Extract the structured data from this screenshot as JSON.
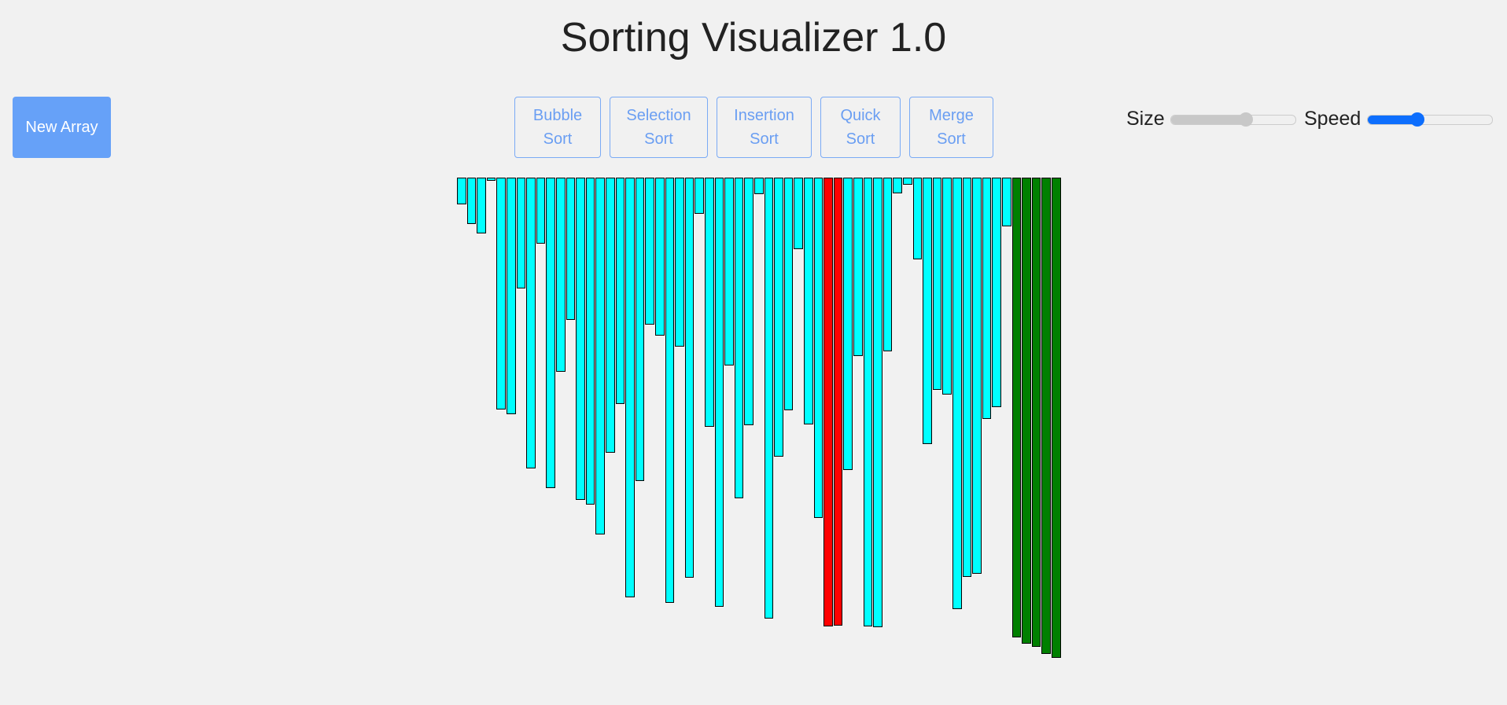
{
  "header": {
    "title": "Sorting Visualizer 1.0"
  },
  "controls": {
    "new_array_label": "New Array",
    "algorithms": [
      {
        "line1": "Bubble",
        "line2": "Sort"
      },
      {
        "line1": "Selection",
        "line2": "Sort"
      },
      {
        "line1": "Insertion",
        "line2": "Sort"
      },
      {
        "line1": "Quick",
        "line2": "Sort"
      },
      {
        "line1": "Merge",
        "line2": "Sort"
      }
    ],
    "size_label": "Size",
    "speed_label": "Speed",
    "size_value_fraction": 0.6,
    "speed_value_fraction": 0.4
  },
  "colors": {
    "unsorted": "#00ffff",
    "comparing": "#ff0000",
    "sorted": "#008000",
    "button_primary": "#66a1f8",
    "slider_active": "#0d6efd"
  },
  "array": {
    "values": [
      34,
      59,
      71,
      4,
      295,
      301,
      141,
      370,
      84,
      395,
      247,
      181,
      410,
      416,
      454,
      350,
      288,
      534,
      386,
      187,
      201,
      541,
      215,
      509,
      46,
      317,
      546,
      239,
      408,
      315,
      21,
      561,
      355,
      296,
      91,
      314,
      433,
      571,
      570,
      372,
      227,
      571,
      572,
      221,
      20,
      9,
      104,
      339,
      270,
      276,
      549,
      508,
      504,
      307,
      292,
      62,
      585,
      593,
      597,
      606,
      611
    ],
    "states": [
      "u",
      "u",
      "u",
      "u",
      "u",
      "u",
      "u",
      "u",
      "u",
      "u",
      "u",
      "u",
      "u",
      "u",
      "u",
      "u",
      "u",
      "u",
      "u",
      "u",
      "u",
      "u",
      "u",
      "u",
      "u",
      "u",
      "u",
      "u",
      "u",
      "u",
      "u",
      "u",
      "u",
      "u",
      "u",
      "u",
      "u",
      "c",
      "c",
      "u",
      "u",
      "u",
      "u",
      "u",
      "u",
      "u",
      "u",
      "u",
      "u",
      "u",
      "u",
      "u",
      "u",
      "u",
      "u",
      "u",
      "s",
      "s",
      "s",
      "s",
      "s"
    ]
  }
}
